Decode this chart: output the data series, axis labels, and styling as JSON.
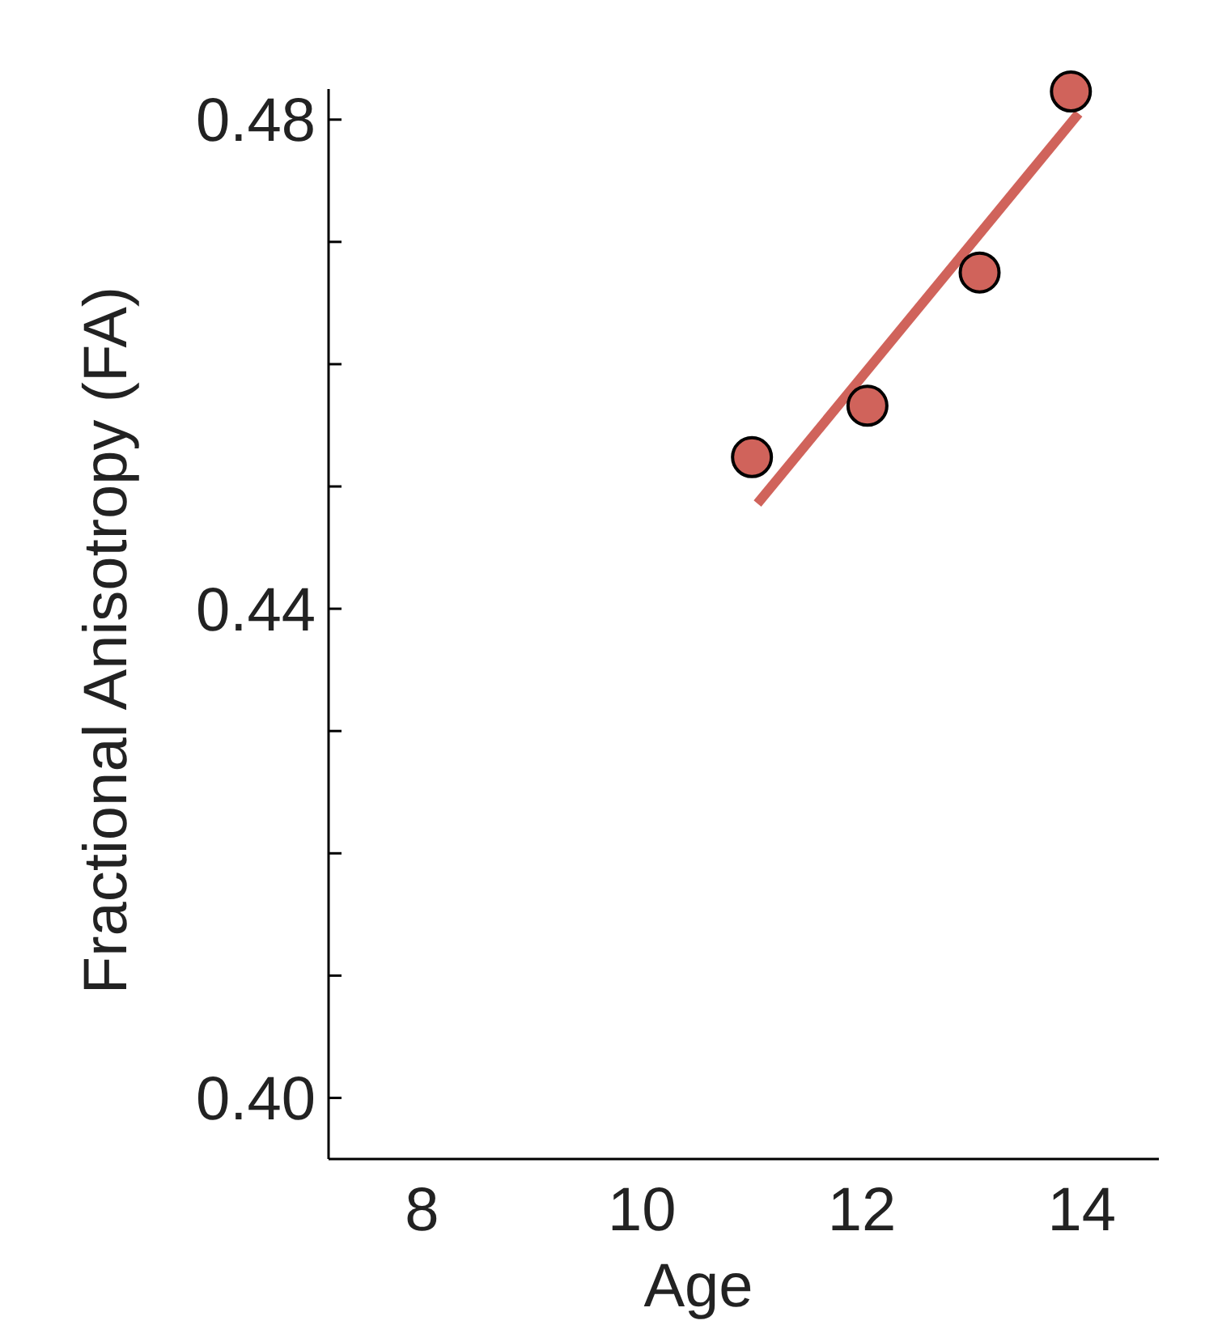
{
  "chart_data": {
    "type": "scatter",
    "xlabel": "Age",
    "ylabel": "Fractional Anisotropy (FA)",
    "xlim": [
      7.15,
      14.7
    ],
    "ylim": [
      0.395,
      0.4825
    ],
    "xticks": [
      8,
      10,
      12,
      14
    ],
    "yticks": [
      {
        "value": 0.4,
        "label": "0.40"
      },
      {
        "value": 0.41,
        "label": null
      },
      {
        "value": 0.42,
        "label": null
      },
      {
        "value": 0.43,
        "label": null
      },
      {
        "value": 0.44,
        "label": "0.44"
      },
      {
        "value": 0.45,
        "label": null
      },
      {
        "value": 0.46,
        "label": null
      },
      {
        "value": 0.47,
        "label": null
      },
      {
        "value": 0.48,
        "label": "0.48"
      }
    ],
    "grid": false,
    "series": [
      {
        "marker": "circle",
        "color": "#d0635b",
        "x": [
          11.0,
          12.05,
          13.07,
          13.9
        ],
        "values": [
          0.4524,
          0.4566,
          0.4675,
          0.4823
        ]
      },
      {
        "type": "line",
        "marker": "none",
        "color": "#d0635b",
        "x": [
          11.05,
          13.97
        ],
        "values": [
          0.4486,
          0.4805
        ]
      }
    ]
  }
}
